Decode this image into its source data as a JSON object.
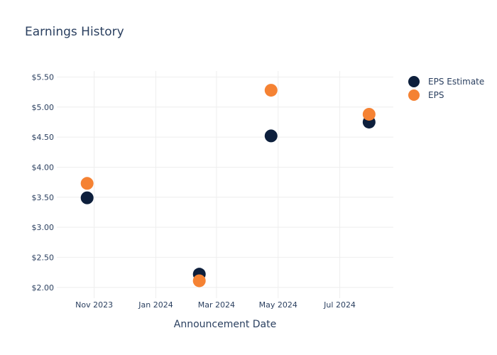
{
  "chart_data": {
    "type": "scatter",
    "title": "Earnings History",
    "xlabel": "Announcement Date",
    "ylabel": "",
    "x_ticks": [
      {
        "date": "2023-11-01",
        "label": "Nov 2023"
      },
      {
        "date": "2024-01-01",
        "label": "Jan 2024"
      },
      {
        "date": "2024-03-01",
        "label": "Mar 2024"
      },
      {
        "date": "2024-05-01",
        "label": "May 2024"
      },
      {
        "date": "2024-07-01",
        "label": "Jul 2024"
      }
    ],
    "xlim": [
      "2023-09-25",
      "2024-08-23"
    ],
    "y_ticks": [
      {
        "value": 2.0,
        "label": "$2.00"
      },
      {
        "value": 2.5,
        "label": "$2.50"
      },
      {
        "value": 3.0,
        "label": "$3.00"
      },
      {
        "value": 3.5,
        "label": "$3.50"
      },
      {
        "value": 4.0,
        "label": "$4.00"
      },
      {
        "value": 4.5,
        "label": "$4.50"
      },
      {
        "value": 5.0,
        "label": "$5.00"
      },
      {
        "value": 5.5,
        "label": "$5.50"
      }
    ],
    "ylim": [
      1.82,
      5.6
    ],
    "grid": true,
    "legend_position": "top-right",
    "series": [
      {
        "name": "EPS Estimate",
        "color": "#0d1f3c",
        "points": [
          {
            "x": "2023-10-25",
            "y": 3.49
          },
          {
            "x": "2024-02-13",
            "y": 2.22
          },
          {
            "x": "2024-04-24",
            "y": 4.52
          },
          {
            "x": "2024-07-30",
            "y": 4.75
          }
        ]
      },
      {
        "name": "EPS",
        "color": "#f58233",
        "points": [
          {
            "x": "2023-10-25",
            "y": 3.73
          },
          {
            "x": "2024-02-13",
            "y": 2.11
          },
          {
            "x": "2024-04-24",
            "y": 5.28
          },
          {
            "x": "2024-07-30",
            "y": 4.88
          }
        ]
      }
    ]
  }
}
